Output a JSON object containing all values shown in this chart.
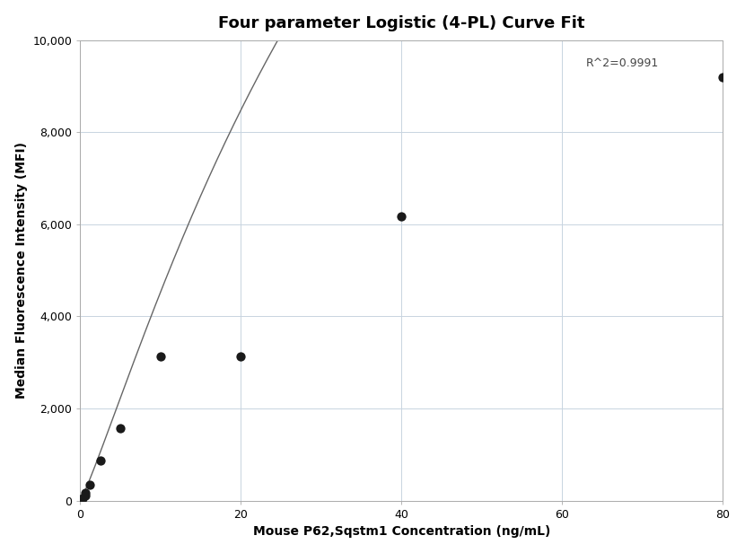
{
  "title": "Four parameter Logistic (4-PL) Curve Fit",
  "xlabel": "Mouse P62,Sqstm1 Concentration (ng/mL)",
  "ylabel": "Median Fluorescence Intensity (MFI)",
  "scatter_x": [
    0.156,
    0.313,
    0.625,
    0.625,
    1.25,
    2.5,
    5.0,
    10.0,
    20.0,
    40.0,
    80.0
  ],
  "scatter_y": [
    30,
    60,
    120,
    170,
    340,
    880,
    1580,
    3130,
    3130,
    6180,
    9200
  ],
  "xlim": [
    0,
    80
  ],
  "ylim": [
    0,
    10000
  ],
  "yticks": [
    0,
    2000,
    4000,
    6000,
    8000,
    10000
  ],
  "ytick_labels": [
    "0",
    "2,000",
    "4,000",
    "6,000",
    "8,000",
    "10,000"
  ],
  "xticks": [
    0,
    20,
    40,
    60,
    80
  ],
  "r_squared": "R^2=0.9991",
  "r2_x": 63,
  "r2_y": 9500,
  "dot_color": "#1a1a1a",
  "line_color": "#666666",
  "background_color": "#ffffff",
  "grid_color": "#c8d4e0",
  "title_fontsize": 13,
  "label_fontsize": 10,
  "tick_fontsize": 9,
  "4pl_A": 0.0,
  "4pl_B": 1.15,
  "4pl_C": 45.0,
  "4pl_D": 30000.0
}
